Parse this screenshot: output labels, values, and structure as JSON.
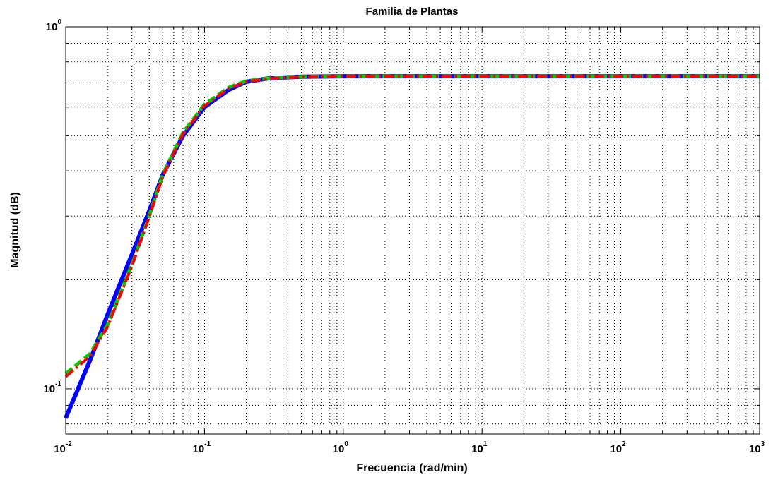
{
  "chart_data": {
    "type": "line",
    "title": "Familia de Plantas",
    "xlabel": "Frecuencia (rad/min)",
    "ylabel": "Magnitud (dB)",
    "xscale": "log",
    "yscale": "log",
    "xlim": [
      0.01,
      1000
    ],
    "ylim": [
      0.075,
      1
    ],
    "grid": true,
    "x_ticks": [
      {
        "base": "10",
        "exp": "-2",
        "value": 0.01
      },
      {
        "base": "10",
        "exp": "-1",
        "value": 0.1
      },
      {
        "base": "10",
        "exp": "0",
        "value": 1
      },
      {
        "base": "10",
        "exp": "1",
        "value": 10
      },
      {
        "base": "10",
        "exp": "2",
        "value": 100
      },
      {
        "base": "10",
        "exp": "3",
        "value": 1000
      }
    ],
    "y_ticks": [
      {
        "base": "10",
        "exp": "-1",
        "value": 0.1
      },
      {
        "base": "10",
        "exp": "0",
        "value": 1
      }
    ],
    "x": [
      0.01,
      0.015,
      0.02,
      0.03,
      0.04,
      0.05,
      0.07,
      0.1,
      0.15,
      0.2,
      0.3,
      0.5,
      1,
      10,
      100,
      1000
    ],
    "series": [
      {
        "color": "#0000ff",
        "dash": "solid",
        "values": [
          0.083,
          0.12,
          0.16,
          0.235,
          0.31,
          0.39,
          0.5,
          0.6,
          0.67,
          0.705,
          0.722,
          0.728,
          0.73,
          0.73,
          0.73,
          0.73
        ]
      },
      {
        "color": "#00cc00",
        "dash": "dashed",
        "values": [
          0.11,
          0.125,
          0.15,
          0.22,
          0.3,
          0.39,
          0.51,
          0.61,
          0.68,
          0.708,
          0.722,
          0.728,
          0.73,
          0.73,
          0.73,
          0.73
        ]
      },
      {
        "color": "#ff0000",
        "dash": "dashdot",
        "values": [
          0.108,
          0.123,
          0.148,
          0.218,
          0.298,
          0.385,
          0.505,
          0.605,
          0.675,
          0.705,
          0.72,
          0.727,
          0.73,
          0.73,
          0.73,
          0.73
        ]
      }
    ]
  }
}
